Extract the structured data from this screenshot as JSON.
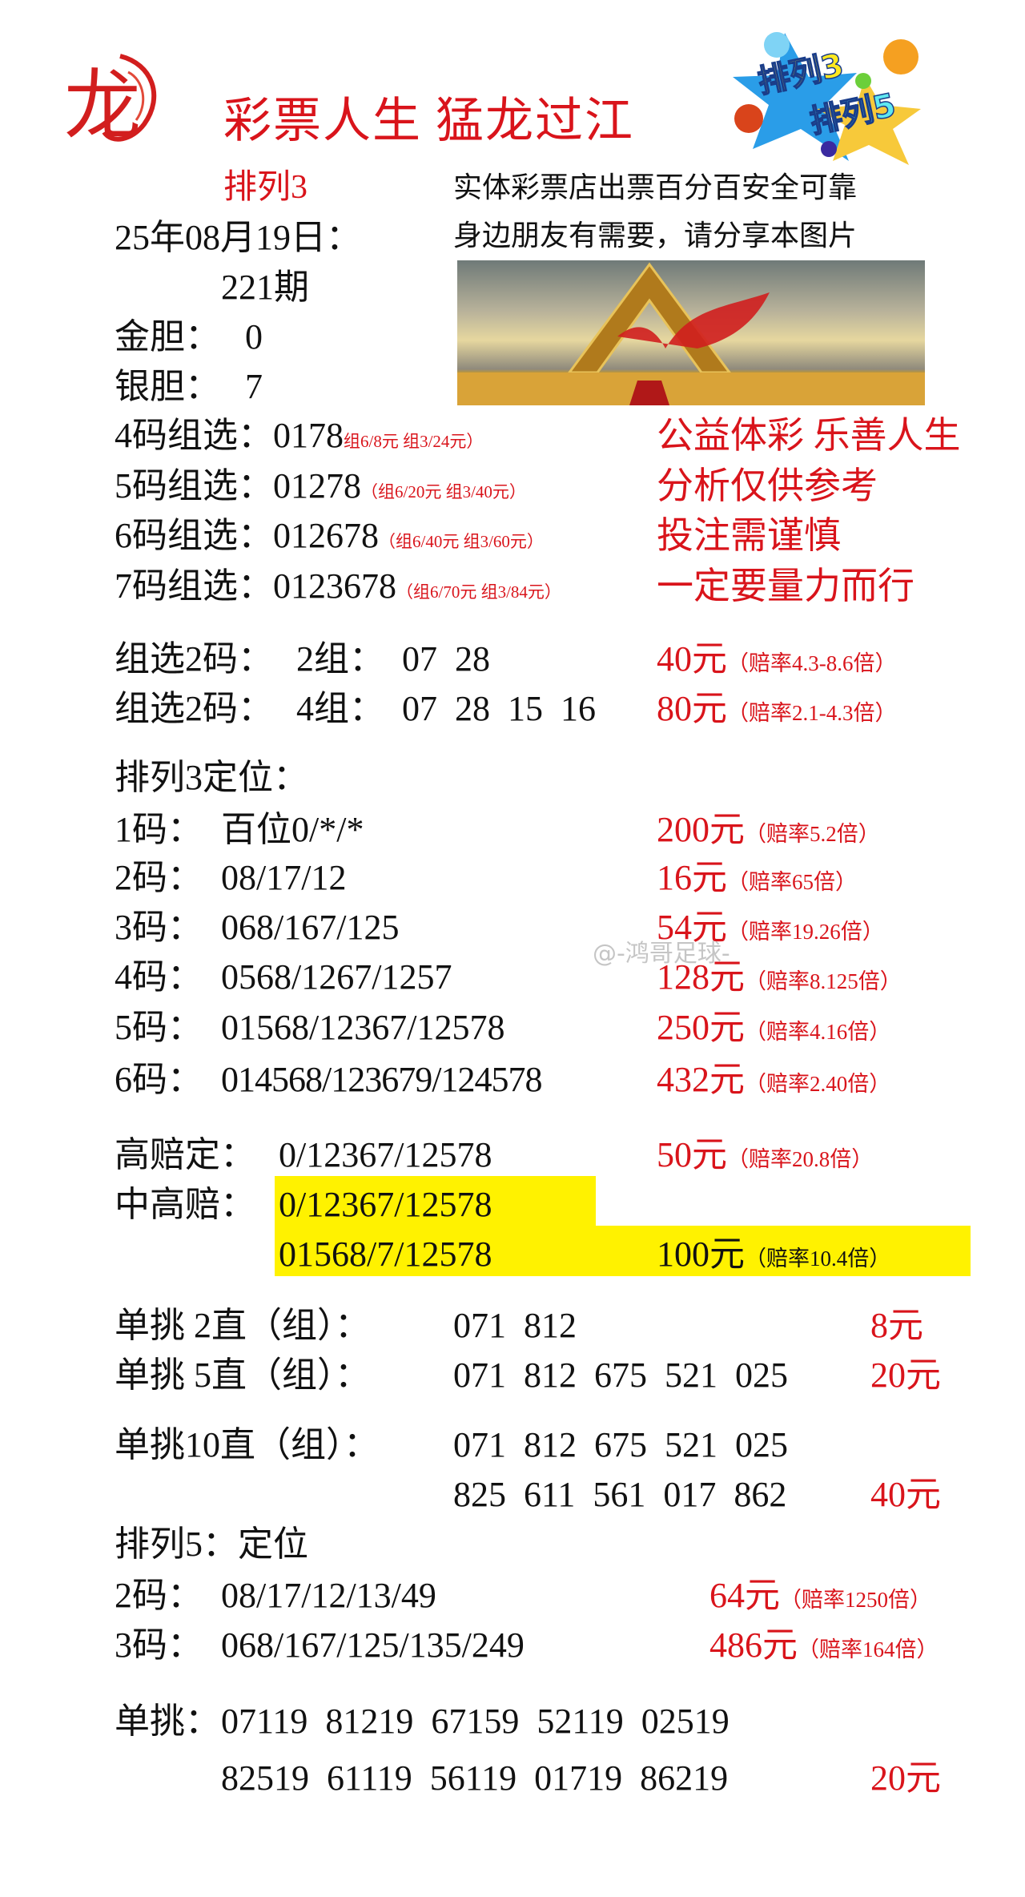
{
  "header": {
    "title": "彩票人生 猛龙过江",
    "logo_left_text": "龙",
    "logo_right_text": [
      "排列3",
      "排列5"
    ],
    "subtitle": "排列3",
    "slogan_lines": [
      "实体彩票店出票百分百安全可靠",
      "身边朋友有需要，请分享本图片"
    ]
  },
  "issue": {
    "date": "25年08月19日：",
    "period": "221期",
    "gold": {
      "label": "金胆：",
      "value": "0"
    },
    "silver": {
      "label": "银胆：",
      "value": "7"
    }
  },
  "group_picks": [
    {
      "label": "4码组选：",
      "value": "0178",
      "note": "组6/8元 组3/24元）"
    },
    {
      "label": "5码组选：",
      "value": "01278",
      "note": "（组6/20元 组3/40元）"
    },
    {
      "label": "6码组选：",
      "value": "012678",
      "note": "（组6/40元 组3/60元）"
    },
    {
      "label": "7码组选：",
      "value": "0123678",
      "note": "（组6/70元 组3/84元）"
    }
  ],
  "mottos": [
    "公益体彩 乐善人生",
    "分析仅供参考",
    "投注需谨慎",
    "一定要量力而行"
  ],
  "two_code": [
    {
      "label": "组选2码：",
      "value": "2组：  07  28",
      "price": "40元",
      "odds": "（赔率4.3-8.6倍）"
    },
    {
      "label": "组选2码：",
      "value": "4组：  07  28  15  16",
      "price": "80元",
      "odds": "（赔率2.1-4.3倍）"
    }
  ],
  "p3_position": {
    "title": "排列3定位：",
    "rows": [
      {
        "label": "1码：",
        "value": "百位0/*/*",
        "price": "200元",
        "odds": "（赔率5.2倍）"
      },
      {
        "label": "2码：",
        "value": "08/17/12",
        "price": "16元",
        "odds": "（赔率65倍）"
      },
      {
        "label": "3码：",
        "value": "068/167/125",
        "price": "54元",
        "odds": "（赔率19.26倍）"
      },
      {
        "label": "4码：",
        "value": "0568/1267/1257",
        "price": "128元",
        "odds": "（赔率8.125倍）"
      },
      {
        "label": "5码：",
        "value": "01568/12367/12578",
        "price": "250元",
        "odds": "（赔率4.16倍）"
      },
      {
        "label": "6码：",
        "value": "014568/123679/124578",
        "price": "432元",
        "odds": "（赔率2.40倍）"
      }
    ]
  },
  "high_odds": {
    "label": "高赔定：",
    "value": "0/12367/12578",
    "price": "50元",
    "odds": "（赔率20.8倍）"
  },
  "mid_high_odds": {
    "label": "中高赔：",
    "lines": [
      "0/12367/12578",
      "01568/7/12578"
    ],
    "price": "100元",
    "odds": "（赔率10.4倍）",
    "highlight_color": "#fff200"
  },
  "singles": [
    {
      "label": "单挑 2直（组）：",
      "lines": [
        "071  812"
      ],
      "price": "8元"
    },
    {
      "label": "单挑 5直（组）：",
      "lines": [
        "071  812  675  521  025"
      ],
      "price": "20元"
    },
    {
      "label": "单挑10直（组）：",
      "lines": [
        "071  812  675  521  025",
        "825  611  561  017  862"
      ],
      "price": "40元"
    }
  ],
  "p5_position": {
    "title": "排列5：定位",
    "rows": [
      {
        "label": "2码：",
        "value": "08/17/12/13/49",
        "price": "64元",
        "odds": "（赔率1250倍）"
      },
      {
        "label": "3码：",
        "value": "068/167/125/135/249",
        "price": "486元",
        "odds": "（赔率164倍）"
      }
    ]
  },
  "p5_single": {
    "label": "单挑：",
    "lines": [
      "07119  81219  67159  52119  02519",
      "82519  61119  56119  01719  86219"
    ],
    "price": "20元"
  },
  "watermark": "@-鸿哥足球-",
  "colors": {
    "accent_red": "#d9141b",
    "text": "#111111",
    "highlight": "#fff200"
  }
}
